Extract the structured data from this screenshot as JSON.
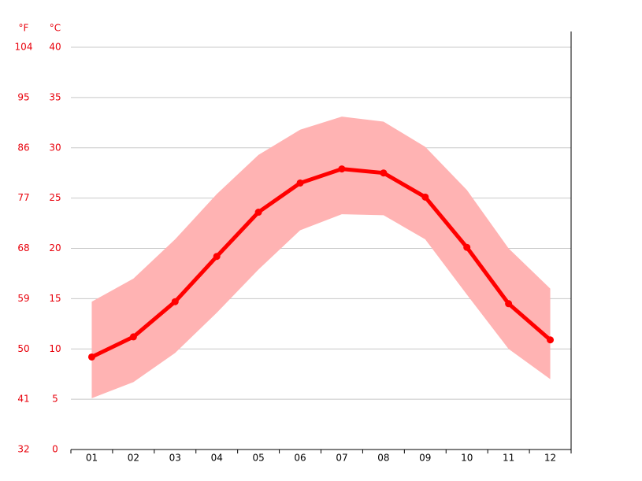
{
  "chart_data": {
    "type": "line",
    "y_unit_label": "°C",
    "y2_unit_label": "°F",
    "categories": [
      "01",
      "02",
      "03",
      "04",
      "05",
      "06",
      "07",
      "08",
      "09",
      "10",
      "11",
      "12"
    ],
    "series": [
      {
        "role": "mean",
        "color": "#ff0000",
        "values": [
          9.2,
          11.2,
          14.7,
          19.2,
          23.6,
          26.5,
          27.9,
          27.5,
          25.1,
          20.1,
          14.5,
          10.9
        ]
      },
      {
        "role": "max",
        "color": "#ffb3b3",
        "values": [
          14.7,
          17.0,
          20.9,
          25.4,
          29.3,
          31.8,
          33.1,
          32.6,
          30.1,
          25.8,
          20.0,
          16.0
        ]
      },
      {
        "role": "min",
        "color": "#ffb3b3",
        "values": [
          5.1,
          6.7,
          9.6,
          13.6,
          17.9,
          21.8,
          23.4,
          23.3,
          20.9,
          15.4,
          10.0,
          7.0
        ]
      }
    ],
    "ylim": [
      0,
      40
    ],
    "yticks": [
      0,
      5,
      10,
      15,
      20,
      25,
      30,
      35,
      40
    ],
    "y2lim": [
      32,
      104
    ],
    "y2ticks": [
      32,
      41,
      50,
      59,
      68,
      77,
      86,
      95,
      104
    ],
    "grid": true
  }
}
